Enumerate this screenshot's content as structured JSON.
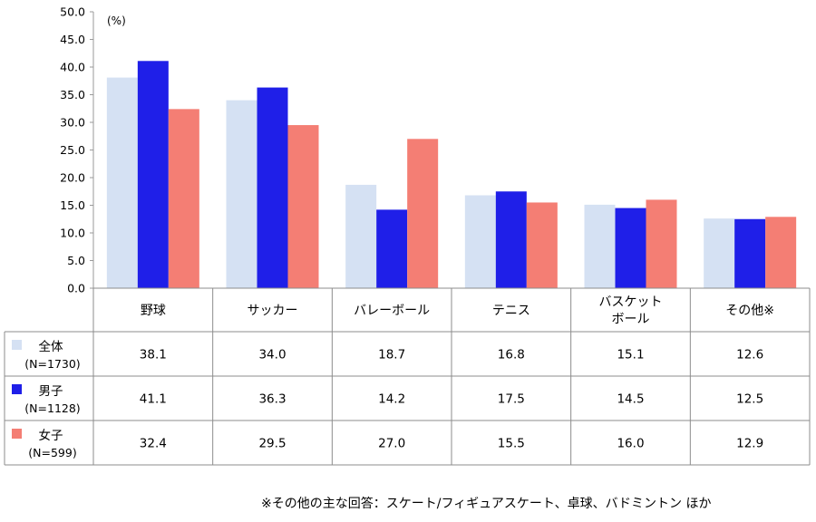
{
  "chart_data": {
    "type": "bar",
    "unit_label": "(%)",
    "categories": [
      [
        "野球"
      ],
      [
        "サッカー"
      ],
      [
        "バレーボール"
      ],
      [
        "テニス"
      ],
      [
        "バスケット",
        "ボール"
      ],
      [
        "その他※"
      ]
    ],
    "series": [
      {
        "name": "全体",
        "n_label": "(N=1730)",
        "color": "#d5e1f3",
        "values": [
          38.1,
          34.0,
          18.7,
          16.8,
          15.1,
          12.6
        ]
      },
      {
        "name": "男子",
        "n_label": "(N=1128)",
        "color": "#1f1fe8",
        "values": [
          41.1,
          36.3,
          14.2,
          17.5,
          14.5,
          12.5
        ]
      },
      {
        "name": "女子",
        "n_label": "(N=599)",
        "color": "#f47e74",
        "values": [
          32.4,
          29.5,
          27.0,
          15.5,
          16.0,
          12.9
        ]
      }
    ],
    "ylim": [
      0,
      50
    ],
    "yticks": [
      "0.0",
      "5.0",
      "10.0",
      "15.0",
      "20.0",
      "25.0",
      "30.0",
      "35.0",
      "40.0",
      "45.0",
      "50.0"
    ],
    "table": {
      "rows": [
        [
          "38.1",
          "34.0",
          "18.7",
          "16.8",
          "15.1",
          "12.6"
        ],
        [
          "41.1",
          "36.3",
          "14.2",
          "17.5",
          "14.5",
          "12.5"
        ],
        [
          "32.4",
          "29.5",
          "27.0",
          "15.5",
          "16.0",
          "12.9"
        ]
      ]
    },
    "grid": false,
    "legend": "data-table-left"
  },
  "footnote": "※その他の主な回答：スケート/フィギュアスケート、卓球、バドミントン ほか"
}
